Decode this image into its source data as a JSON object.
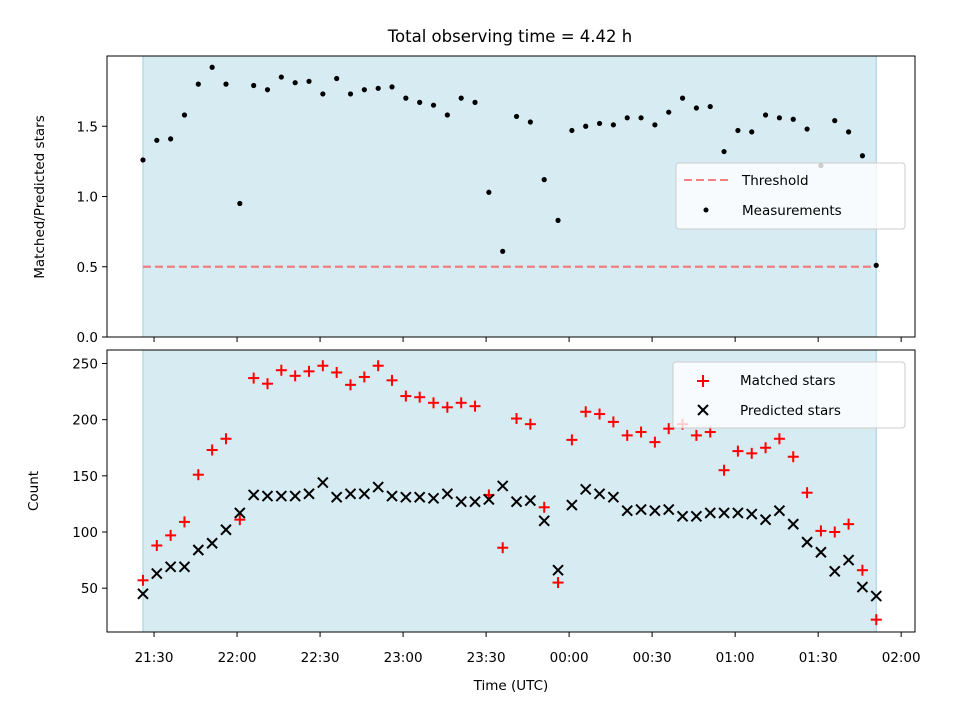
{
  "chart_data": [
    {
      "type": "scatter",
      "panel": "top",
      "title": "Total observing time = 4.42 h",
      "xlabel": "",
      "ylabel": "Matched/Predicted stars",
      "ylim": [
        0,
        2.0
      ],
      "yticks": [
        0.0,
        0.5,
        1.0,
        1.5
      ],
      "ytick_labels": [
        "0.0",
        "0.5",
        "1.0",
        "1.5"
      ],
      "legend_position": "center-right",
      "shaded_span": {
        "start": "21:26",
        "end": "01:51",
        "color": "#add8e6"
      },
      "threshold": {
        "name": "Threshold",
        "value": 0.5,
        "color": "#f08080"
      },
      "series": [
        {
          "name": "Measurements",
          "color": "#000000",
          "marker": "dot",
          "x": [
            "21:26",
            "21:31",
            "21:36",
            "21:41",
            "21:46",
            "21:51",
            "21:56",
            "22:01",
            "22:06",
            "22:11",
            "22:16",
            "22:21",
            "22:26",
            "22:31",
            "22:36",
            "22:41",
            "22:46",
            "22:51",
            "22:56",
            "23:01",
            "23:06",
            "23:11",
            "23:16",
            "23:21",
            "23:26",
            "23:31",
            "23:36",
            "23:41",
            "23:46",
            "23:51",
            "23:56",
            "00:01",
            "00:06",
            "00:11",
            "00:16",
            "00:21",
            "00:26",
            "00:31",
            "00:36",
            "00:41",
            "00:46",
            "00:51",
            "00:56",
            "01:01",
            "01:06",
            "01:11",
            "01:16",
            "01:21",
            "01:26",
            "01:31",
            "01:36",
            "01:41",
            "01:46",
            "01:51"
          ],
          "y": [
            1.26,
            1.4,
            1.41,
            1.58,
            1.8,
            1.92,
            1.8,
            0.95,
            1.79,
            1.76,
            1.85,
            1.81,
            1.82,
            1.73,
            1.84,
            1.73,
            1.76,
            1.77,
            1.78,
            1.7,
            1.67,
            1.65,
            1.58,
            1.7,
            1.67,
            1.03,
            0.61,
            1.57,
            1.53,
            1.12,
            0.83,
            1.47,
            1.5,
            1.52,
            1.51,
            1.56,
            1.56,
            1.51,
            1.6,
            1.7,
            1.63,
            1.64,
            1.32,
            1.47,
            1.46,
            1.58,
            1.56,
            1.55,
            1.48,
            1.22,
            1.54,
            1.46,
            1.29,
            0.51
          ]
        }
      ]
    },
    {
      "type": "scatter",
      "panel": "bottom",
      "xlabel": "Time (UTC)",
      "ylabel": "Count",
      "ylim": [
        11,
        262
      ],
      "yticks": [
        50,
        100,
        150,
        200,
        250
      ],
      "ytick_labels": [
        "50",
        "100",
        "150",
        "200",
        "250"
      ],
      "xlim": [
        "21:13",
        "02:05"
      ],
      "xticks": [
        "21:30",
        "22:00",
        "22:30",
        "23:00",
        "23:30",
        "00:00",
        "00:30",
        "01:00",
        "01:30",
        "02:00"
      ],
      "legend_position": "top-right",
      "shaded_span": {
        "start": "21:26",
        "end": "01:51",
        "color": "#add8e6"
      },
      "series": [
        {
          "name": "Matched stars",
          "color": "#ff0000",
          "marker": "plus",
          "x": [
            "21:26",
            "21:31",
            "21:36",
            "21:41",
            "21:46",
            "21:51",
            "21:56",
            "22:01",
            "22:06",
            "22:11",
            "22:16",
            "22:21",
            "22:26",
            "22:31",
            "22:36",
            "22:41",
            "22:46",
            "22:51",
            "22:56",
            "23:01",
            "23:06",
            "23:11",
            "23:16",
            "23:21",
            "23:26",
            "23:31",
            "23:36",
            "23:41",
            "23:46",
            "23:51",
            "23:56",
            "00:01",
            "00:06",
            "00:11",
            "00:16",
            "00:21",
            "00:26",
            "00:31",
            "00:36",
            "00:41",
            "00:46",
            "00:51",
            "00:56",
            "01:01",
            "01:06",
            "01:11",
            "01:16",
            "01:21",
            "01:26",
            "01:31",
            "01:36",
            "01:41",
            "01:46",
            "01:51"
          ],
          "y": [
            57,
            88,
            97,
            109,
            151,
            173,
            183,
            111,
            237,
            232,
            244,
            239,
            243,
            248,
            242,
            231,
            238,
            248,
            235,
            221,
            220,
            215,
            211,
            215,
            212,
            133,
            86,
            201,
            196,
            122,
            55,
            182,
            207,
            205,
            198,
            186,
            189,
            180,
            192,
            196,
            186,
            189,
            155,
            172,
            170,
            175,
            183,
            167,
            135,
            101,
            100,
            107,
            66,
            22
          ]
        },
        {
          "name": "Predicted stars",
          "color": "#000000",
          "marker": "x",
          "x": [
            "21:26",
            "21:31",
            "21:36",
            "21:41",
            "21:46",
            "21:51",
            "21:56",
            "22:01",
            "22:06",
            "22:11",
            "22:16",
            "22:21",
            "22:26",
            "22:31",
            "22:36",
            "22:41",
            "22:46",
            "22:51",
            "22:56",
            "23:01",
            "23:06",
            "23:11",
            "23:16",
            "23:21",
            "23:26",
            "23:31",
            "23:36",
            "23:41",
            "23:46",
            "23:51",
            "23:56",
            "00:01",
            "00:06",
            "00:11",
            "00:16",
            "00:21",
            "00:26",
            "00:31",
            "00:36",
            "00:41",
            "00:46",
            "00:51",
            "00:56",
            "01:01",
            "01:06",
            "01:11",
            "01:16",
            "01:21",
            "01:26",
            "01:31",
            "01:36",
            "01:41",
            "01:46",
            "01:51"
          ],
          "y": [
            45,
            63,
            69,
            69,
            84,
            90,
            102,
            117,
            133,
            132,
            132,
            132,
            134,
            144,
            131,
            134,
            134,
            140,
            132,
            131,
            131,
            130,
            134,
            127,
            127,
            129,
            141,
            127,
            128,
            110,
            66,
            124,
            138,
            134,
            131,
            119,
            120,
            119,
            120,
            114,
            114,
            117,
            117,
            117,
            116,
            111,
            119,
            107,
            91,
            82,
            65,
            75,
            51,
            43
          ]
        }
      ]
    }
  ]
}
